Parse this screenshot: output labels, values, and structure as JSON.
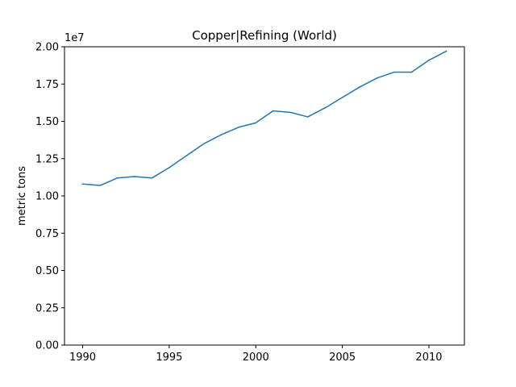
{
  "chart_data": {
    "type": "line",
    "title": "Copper|Refining (World)",
    "xlabel": "",
    "ylabel": "metric tons",
    "y_offset_label": "1e7",
    "xlim": [
      1988.95,
      2012.05
    ],
    "ylim": [
      0,
      20000000
    ],
    "x_ticks": [
      1990,
      1995,
      2000,
      2005,
      2010
    ],
    "x_tick_labels": [
      "1990",
      "1995",
      "2000",
      "2005",
      "2010"
    ],
    "y_ticks": [
      0,
      2500000,
      5000000,
      7500000,
      10000000,
      12500000,
      15000000,
      17500000,
      20000000
    ],
    "y_tick_labels": [
      "0.00",
      "0.25",
      "0.50",
      "0.75",
      "1.00",
      "1.25",
      "1.50",
      "1.75",
      "2.00"
    ],
    "grid": false,
    "series": [
      {
        "color": "#1f77b4",
        "x": [
          1990,
          1991,
          1992,
          1993,
          1994,
          1995,
          1996,
          1997,
          1998,
          1999,
          2000,
          2001,
          2002,
          2003,
          2004,
          2005,
          2006,
          2007,
          2008,
          2009,
          2010,
          2011
        ],
        "y": [
          10800000,
          10700000,
          11200000,
          11300000,
          11200000,
          11900000,
          12700000,
          13500000,
          14100000,
          14600000,
          14900000,
          15700000,
          15600000,
          15300000,
          15900000,
          16600000,
          17300000,
          17900000,
          18300000,
          18300000,
          19100000,
          19700000
        ]
      }
    ]
  }
}
